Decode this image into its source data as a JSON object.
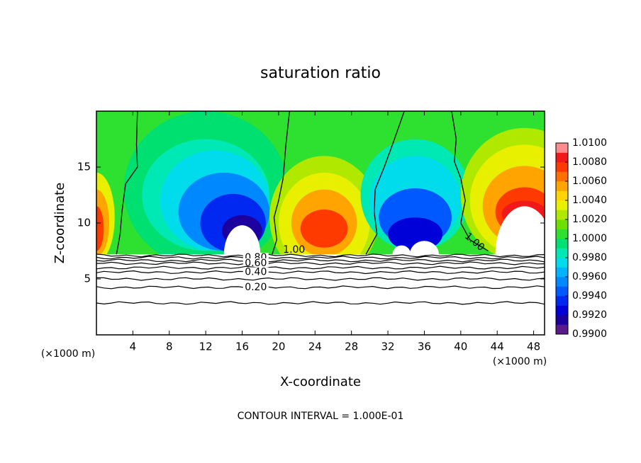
{
  "chart_data": {
    "type": "contour",
    "title": "saturation ratio",
    "xlabel": "X-coordinate",
    "ylabel": "Z-coordinate",
    "x_unit": "(×1000 m)",
    "footer": "CONTOUR INTERVAL = 1.000E-01",
    "xlim": [
      0,
      49.2
    ],
    "ylim": [
      0,
      20
    ],
    "xticks": [
      4,
      8,
      12,
      16,
      20,
      24,
      28,
      32,
      36,
      40,
      44,
      48
    ],
    "yticks": [
      5,
      10,
      15
    ],
    "colorbar": {
      "clim": [
        0.99,
        1.01
      ],
      "ticks": [
        {
          "value": 0.99,
          "label": "0.9900"
        },
        {
          "value": 0.992,
          "label": "0.9920"
        },
        {
          "value": 0.994,
          "label": "0.9940"
        },
        {
          "value": 0.996,
          "label": "0.9960"
        },
        {
          "value": 0.998,
          "label": "0.9980"
        },
        {
          "value": 1.0,
          "label": "1.0000"
        },
        {
          "value": 1.002,
          "label": "1.0020"
        },
        {
          "value": 1.004,
          "label": "1.0040"
        },
        {
          "value": 1.006,
          "label": "1.0060"
        },
        {
          "value": 1.008,
          "label": "1.0080"
        },
        {
          "value": 1.01,
          "label": "1.0100"
        }
      ],
      "colors": [
        "#5a1a8c",
        "#1c00a0",
        "#0000d8",
        "#0028f0",
        "#0058ff",
        "#0088ff",
        "#00b4ff",
        "#00dcec",
        "#00e8b4",
        "#00e070",
        "#2ee030",
        "#6ee000",
        "#b0e800",
        "#e8f000",
        "#ffd400",
        "#ffa400",
        "#ff7000",
        "#ff3a00",
        "#f01818",
        "#ff8c8c"
      ]
    },
    "contours": [
      {
        "level": 1.0,
        "label": "1.00"
      },
      {
        "level": 0.9,
        "z": 7.1
      },
      {
        "level": 0.8,
        "label": "0.80",
        "z": 6.9
      },
      {
        "level": 0.7,
        "z": 6.65
      },
      {
        "level": 0.6,
        "label": "0.60",
        "z": 6.4
      },
      {
        "level": 0.5,
        "z": 6.0
      },
      {
        "level": 0.4,
        "label": "0.40",
        "z": 5.6
      },
      {
        "level": 0.3,
        "z": 5.0
      },
      {
        "level": 0.2,
        "label": "0.20",
        "z": 4.25
      },
      {
        "level": 0.1,
        "z": 2.85
      }
    ]
  }
}
